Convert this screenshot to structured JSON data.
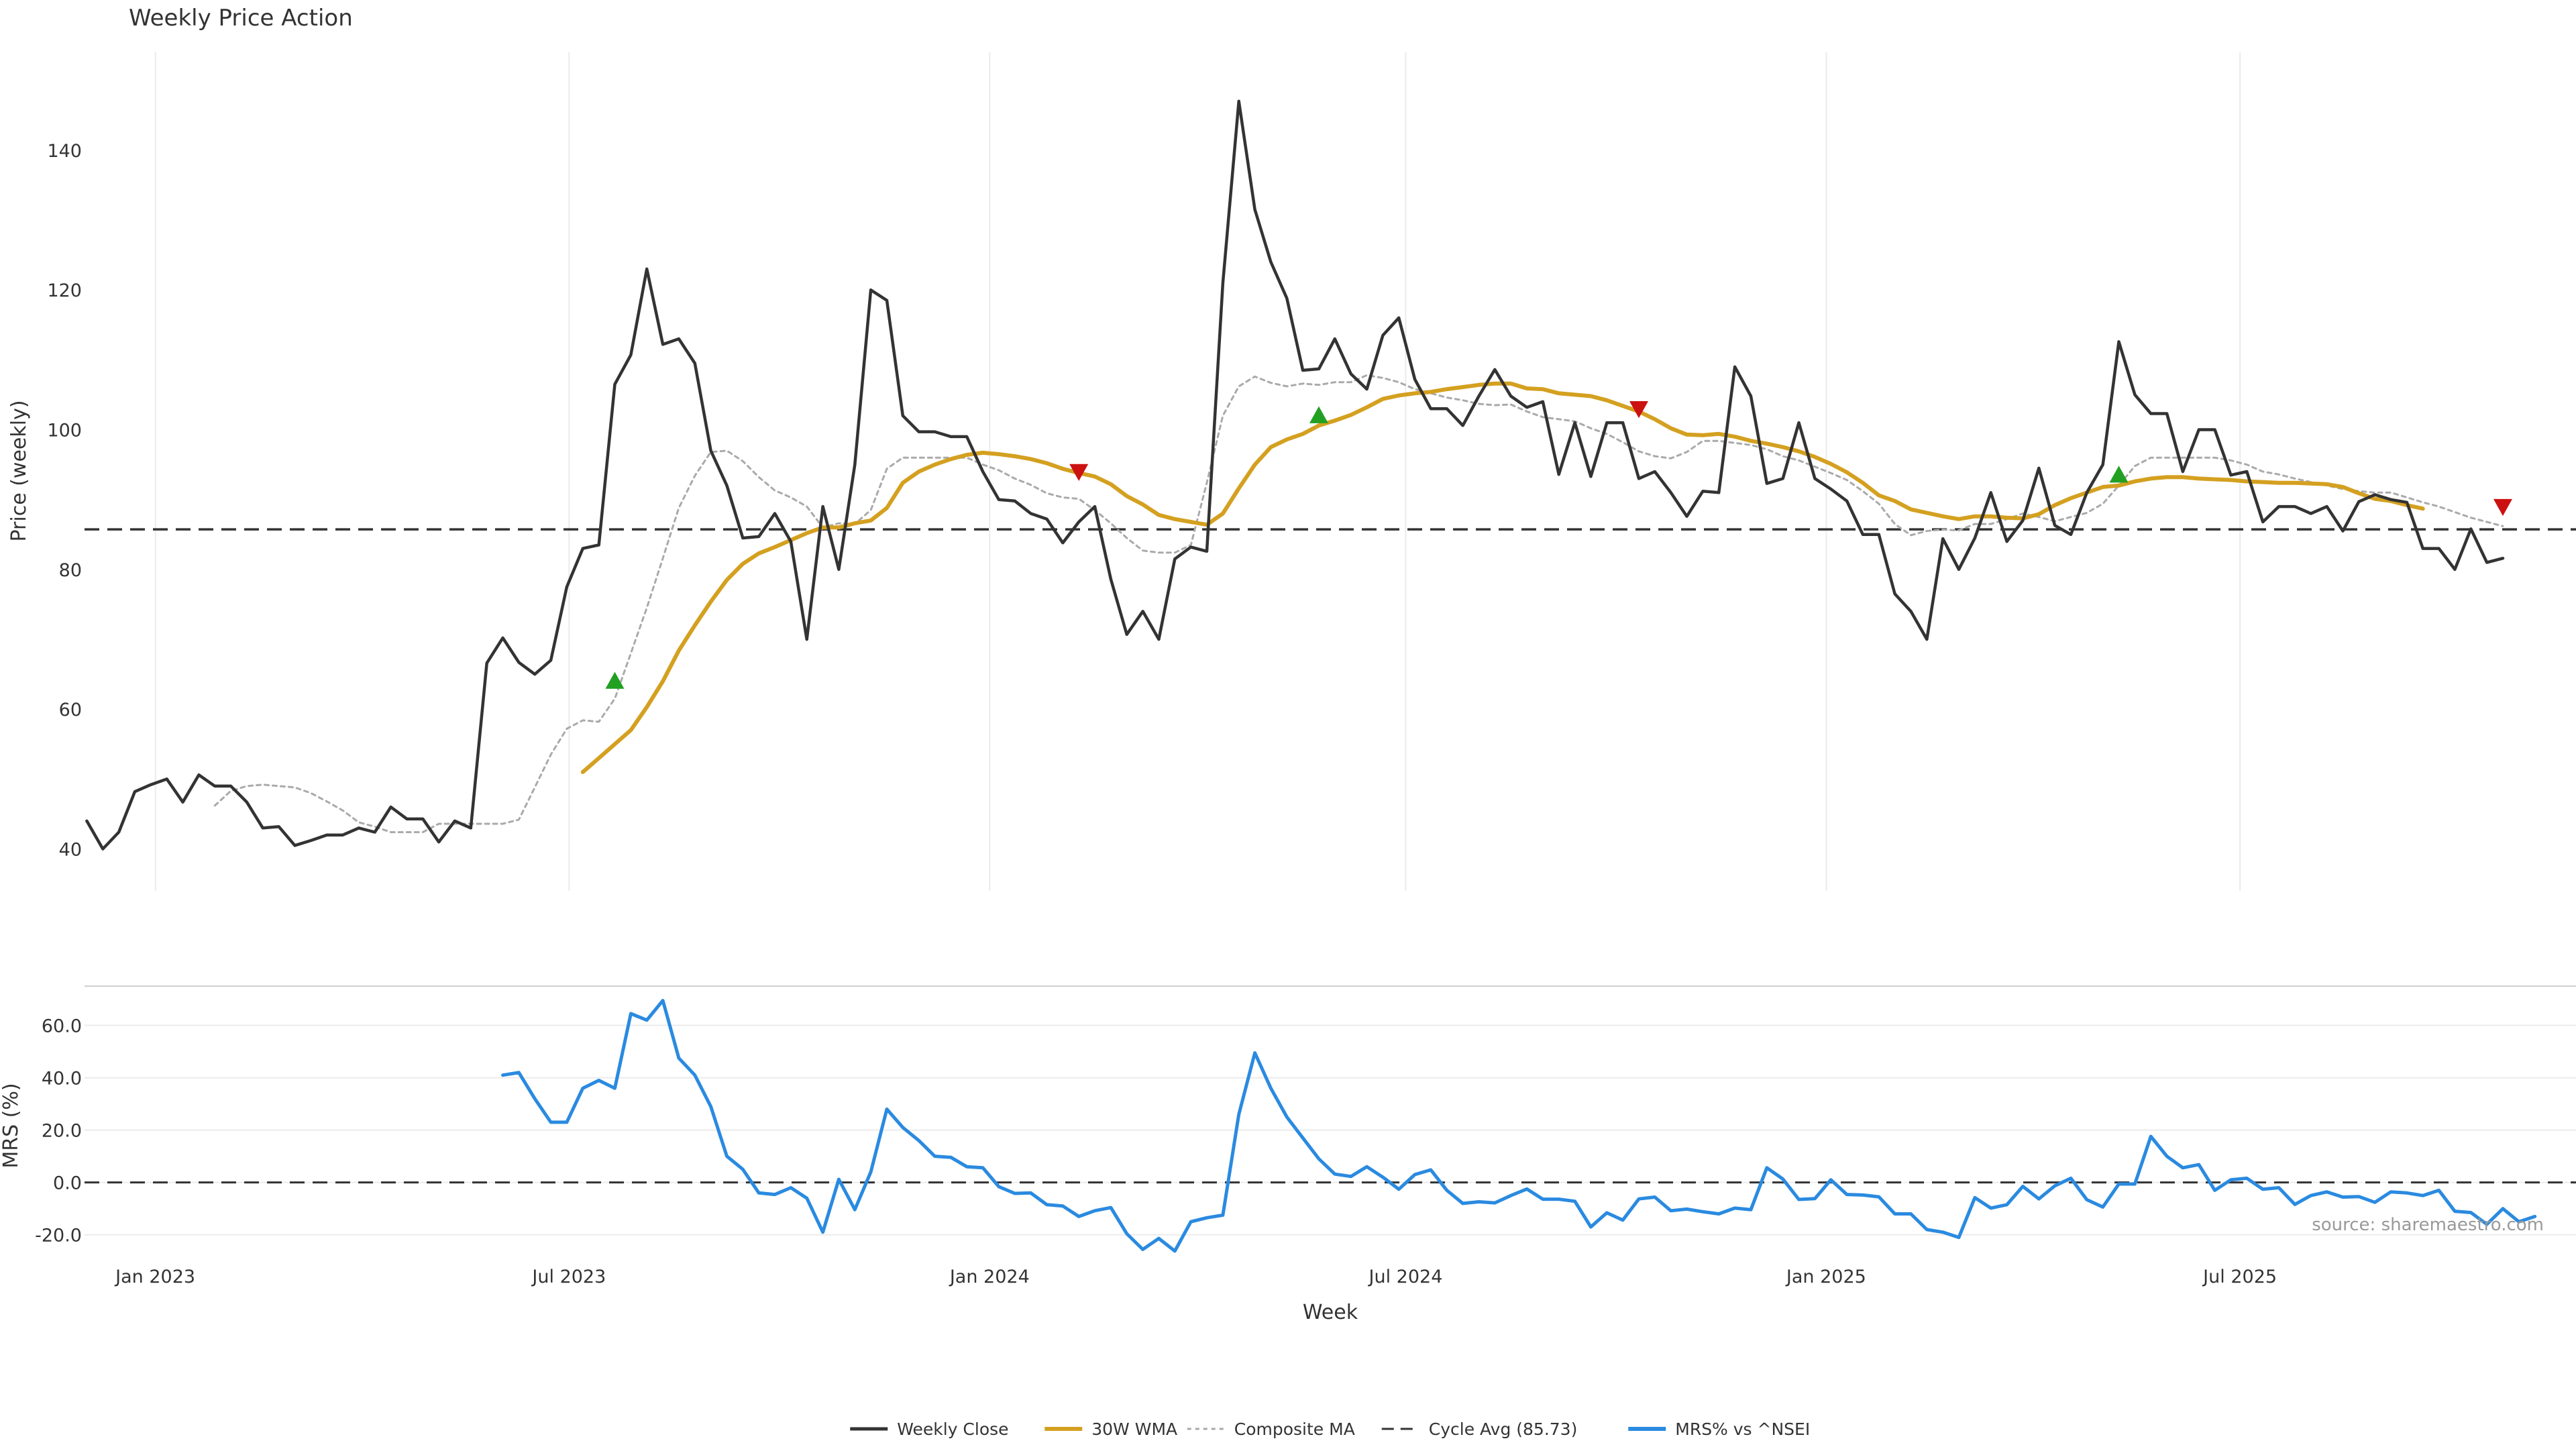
{
  "chart_data": {
    "type": "line",
    "title": "Weekly Price Action",
    "xlabel": "Week",
    "x_ticks": [
      "Jan 2023",
      "Jul 2023",
      "Jan 2024",
      "Jul 2024",
      "Jan 2025",
      "Jul 2025"
    ],
    "x_range": [
      "2022-12-01",
      "2025-11-25"
    ],
    "legend_position": "bottom-center",
    "legend": [
      "Weekly Close",
      "30W WMA",
      "Composite MA",
      "Cycle Avg (85.73)",
      "MRS% vs ^NSEI"
    ],
    "source_note": "source: sharemaestro.com",
    "price_panel": {
      "ylabel": "Price (weekly)",
      "ylim": [
        34,
        154
      ],
      "y_ticks": [
        40,
        60,
        80,
        100,
        120,
        140
      ],
      "grid": "vertical",
      "cycle_avg": 85.73,
      "series": [
        {
          "name": "Weekly Close",
          "color": "#333333",
          "start": "2022-12-02",
          "step_days": 7,
          "values": [
            44,
            40,
            42.4,
            48.2,
            49.2,
            50,
            46.7,
            50.6,
            49,
            49,
            46.7,
            43,
            43.2,
            40.5,
            41.2,
            42,
            42,
            43,
            42.4,
            46,
            44.3,
            44.3,
            41,
            44,
            43,
            66.6,
            70.2,
            66.7,
            65,
            67,
            77.5,
            83,
            83.5,
            106.5,
            110.7,
            123,
            112.2,
            113,
            109.5,
            97,
            92,
            84.5,
            84.7,
            88,
            84,
            70,
            89,
            80,
            95,
            120,
            118.5,
            102,
            99.7,
            99.7,
            99,
            99,
            94,
            90,
            89.8,
            88,
            87.2,
            83.8,
            86.8,
            89,
            78.6,
            70.7,
            74,
            70,
            81.5,
            83.2,
            82.6,
            121,
            147,
            131.5,
            124,
            118.8,
            108.5,
            108.7,
            113,
            108,
            105.8,
            113.5,
            116,
            107.2,
            103,
            103,
            100.6,
            104.8,
            108.6,
            104.8,
            103.2,
            104,
            93.6,
            101,
            93.3,
            101,
            101,
            93,
            94,
            91,
            87.6,
            91.2,
            91,
            109,
            104.8,
            92.3,
            93,
            101,
            93,
            91.5,
            89.8,
            85,
            85,
            76.5,
            74,
            70,
            84.4,
            80,
            84.5,
            91,
            84,
            87,
            94.5,
            86.3,
            85,
            91,
            95,
            112.6,
            105,
            102.3,
            102.3,
            94,
            100,
            100,
            93.5,
            94,
            86.8,
            89,
            89,
            88,
            89,
            85.5,
            89.7,
            90.7,
            90,
            89.6,
            83,
            83,
            80,
            85.8,
            81,
            81.6
          ]
        },
        {
          "name": "30W WMA",
          "color": "#d4a020",
          "start": "2023-07-07",
          "step_days": 7,
          "values": [
            51,
            53,
            55,
            57,
            60.3,
            64,
            68.4,
            72,
            75.4,
            78.5,
            80.8,
            82.3,
            83.2,
            84.2,
            85.2,
            86,
            86,
            86.6,
            87,
            88.8,
            92.4,
            94,
            95,
            95.8,
            96.4,
            96.7,
            96.5,
            96.2,
            95.8,
            95.2,
            94.4,
            93.8,
            93.3,
            92.2,
            90.5,
            89.3,
            87.8,
            87.2,
            86.8,
            86.4,
            88,
            91.6,
            95,
            97.5,
            98.6,
            99.4,
            100.6,
            101.3,
            102.1,
            103.2,
            104.4,
            104.9,
            105.2,
            105.4,
            105.8,
            106.1,
            106.4,
            106.6,
            106.6,
            105.9,
            105.8,
            105.2,
            105,
            104.8,
            104.2,
            103.4,
            102.6,
            101.5,
            100.2,
            99.3,
            99.2,
            99.4,
            99,
            98.4,
            98,
            97.5,
            96.9,
            96.1,
            95.1,
            93.9,
            92.4,
            90.6,
            89.8,
            88.6,
            88.1,
            87.6,
            87.2,
            87.6,
            87.6,
            87.4,
            87.3,
            87.9,
            89.2,
            90.2,
            91,
            91.8,
            92,
            92.6,
            93,
            93.2,
            93.2,
            93,
            92.9,
            92.8,
            92.6,
            92.5,
            92.4,
            92.4,
            92.3,
            92.2,
            91.8,
            90.9,
            90.1,
            89.8,
            89.2,
            88.7
          ]
        },
        {
          "name": "Composite MA",
          "color": "#aaaaaa",
          "start": "2023-01-27",
          "step_days": 7,
          "values": [
            46.2,
            48.3,
            49,
            49.2,
            49,
            48.8,
            48,
            46.8,
            45.5,
            43.8,
            43.2,
            42.4,
            42.4,
            42.4,
            43.6,
            43.6,
            43.6,
            43.6,
            43.6,
            44.2,
            48.8,
            53.5,
            57.2,
            58.4,
            58.2,
            61.5,
            68,
            74.5,
            81.6,
            88.8,
            93.4,
            96.8,
            97,
            95.5,
            93.2,
            91.3,
            90.3,
            89,
            86,
            86.6,
            86.5,
            88.5,
            94.4,
            96,
            96,
            96,
            96,
            96,
            95,
            94.2,
            93,
            92.1,
            90.9,
            90.3,
            90.1,
            88.5,
            86.6,
            84.5,
            82.7,
            82.4,
            82.4,
            83.5,
            92.4,
            102,
            106.2,
            107.6,
            106.7,
            106.2,
            106.6,
            106.4,
            106.8,
            106.8,
            107.8,
            107.4,
            106.8,
            105.8,
            105.2,
            104.6,
            104.2,
            103.7,
            103.5,
            103.6,
            102.6,
            101.8,
            101.5,
            101.2,
            100.2,
            99.4,
            98.2,
            96.9,
            96.2,
            95.9,
            96.8,
            98.4,
            98.4,
            98.1,
            97.8,
            97.2,
            96.2,
            95.6,
            94.7,
            93.8,
            92.8,
            91.2,
            89.4,
            86.5,
            84.9,
            85.5,
            85.7,
            85.6,
            86.5,
            86.5,
            87.2,
            88,
            87.5,
            86.9,
            87.5,
            88.1,
            89.4,
            92,
            94.8,
            96,
            96,
            96,
            96,
            96,
            95.6,
            95,
            94,
            93.6,
            93,
            92.5,
            92,
            91.5,
            91.2,
            91,
            91,
            90.3,
            89.6,
            89,
            88.2,
            87.4,
            86.8,
            86.2
          ]
        }
      ],
      "markers": [
        {
          "type": "buy",
          "date": "2023-07-21",
          "value": 64,
          "color": "#22a022"
        },
        {
          "type": "sell",
          "date": "2024-02-09",
          "value": 94,
          "color": "#cc1111"
        },
        {
          "type": "buy",
          "date": "2024-05-24",
          "value": 102,
          "color": "#22a022"
        },
        {
          "type": "sell",
          "date": "2024-10-11",
          "value": 103,
          "color": "#cc1111"
        },
        {
          "type": "buy",
          "date": "2025-05-09",
          "value": 93.5,
          "color": "#22a022"
        },
        {
          "type": "sell",
          "date": "2025-10-24",
          "value": 89,
          "color": "#cc1111"
        }
      ]
    },
    "mrs_panel": {
      "ylabel": "MRS (%)",
      "ylim": [
        -27,
        75
      ],
      "y_ticks": [
        "60.0",
        "40.0",
        "20.0",
        "0.0",
        "-20.0"
      ],
      "y_tick_values": [
        60,
        40,
        20,
        0,
        -20
      ],
      "grid": "horizontal",
      "zero_line": 0,
      "series": [
        {
          "name": "MRS% vs ^NSEI",
          "color": "#2a8ae0",
          "start": "2023-06-02",
          "step_days": 7,
          "values": [
            41,
            42,
            32,
            23,
            23,
            36,
            39,
            36,
            64.5,
            62,
            69.5,
            47.5,
            41,
            29,
            10,
            5,
            -4,
            -4.6,
            -2,
            -6,
            -19,
            1.2,
            -10.4,
            4,
            28,
            21,
            16,
            10,
            9.6,
            6,
            5.6,
            -1.6,
            -4.2,
            -4,
            -8.5,
            -9,
            -13,
            -10.8,
            -9.6,
            -19.6,
            -25.6,
            -21.4,
            -26.2,
            -15,
            -13.5,
            -12.5,
            26,
            49.5,
            36,
            25,
            17,
            9,
            3.2,
            2.3,
            6,
            2,
            -2.6,
            3,
            4.8,
            -3,
            -8,
            -7.4,
            -7.8,
            -5,
            -2.5,
            -6.4,
            -6.4,
            -7.2,
            -17,
            -11.6,
            -14.4,
            -6.3,
            -5.6,
            -10.8,
            -10.2,
            -11.2,
            -12,
            -9.8,
            -10.4,
            5.6,
            1.3,
            -6.5,
            -6.2,
            1,
            -4.6,
            -4.8,
            -5.5,
            -12,
            -12,
            -18,
            -19,
            -21,
            -5.8,
            -9.8,
            -8.5,
            -1.5,
            -6.3,
            -1.3,
            1.6,
            -6.6,
            -9.4,
            -0.6,
            -0.6,
            17.6,
            10,
            5.6,
            6.8,
            -3,
            1,
            1.6,
            -2.6,
            -2,
            -8.4,
            -5,
            -3.6,
            -5.6,
            -5.4,
            -7.6,
            -3.6,
            -4,
            -5,
            -3,
            -11,
            -11.5,
            -16,
            -10,
            -15,
            -13
          ]
        }
      ]
    }
  }
}
